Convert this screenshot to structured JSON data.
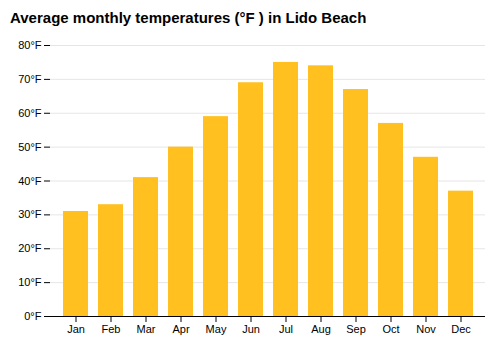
{
  "chart_data": {
    "type": "bar",
    "title": "Average monthly temperatures (°F ) in Lido Beach",
    "categories": [
      "Jan",
      "Feb",
      "Mar",
      "Apr",
      "May",
      "Jun",
      "Jul",
      "Aug",
      "Sep",
      "Oct",
      "Nov",
      "Dec"
    ],
    "values": [
      31,
      33,
      41,
      50,
      59,
      69,
      75,
      74,
      67,
      57,
      47,
      37
    ],
    "color": "#FFC020",
    "ylim": [
      0,
      80
    ],
    "yticks": [
      {
        "value": 0,
        "label": "0°F"
      },
      {
        "value": 10,
        "label": "10°F"
      },
      {
        "value": 20,
        "label": "20°F"
      },
      {
        "value": 30,
        "label": "30°F"
      },
      {
        "value": 40,
        "label": "40°F"
      },
      {
        "value": 50,
        "label": "50°F"
      },
      {
        "value": 60,
        "label": "60°F"
      },
      {
        "value": 70,
        "label": "70°F"
      },
      {
        "value": 80,
        "label": "80°F"
      }
    ],
    "grid": true
  }
}
